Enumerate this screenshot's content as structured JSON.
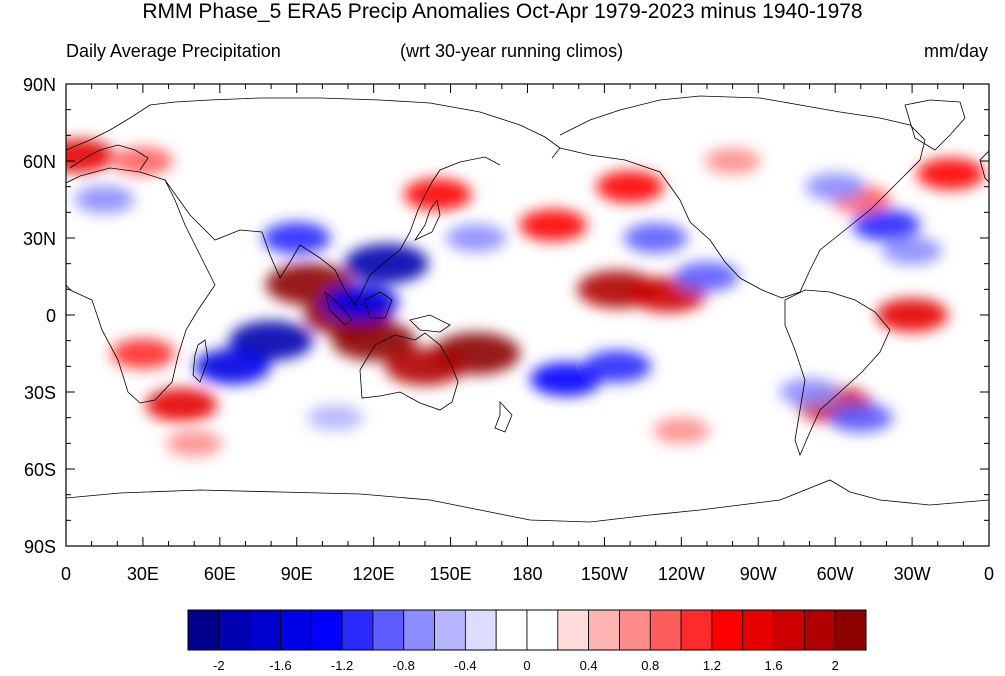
{
  "title": "RMM Phase_5 ERA5 Precip Anomalies Oct-Apr 1979-2023 minus 1940-1978",
  "subtitle_left": "Daily Average Precipitation",
  "subtitle_center": "(wrt 30-year running climos)",
  "subtitle_right": "mm/day",
  "map": {
    "projection": "cylindrical-equidistant",
    "lon_range": [
      0,
      360
    ],
    "lat_range": [
      -90,
      90
    ],
    "lon_ticks": [
      {
        "value": 0,
        "label": "0"
      },
      {
        "value": 30,
        "label": "30E"
      },
      {
        "value": 60,
        "label": "60E"
      },
      {
        "value": 90,
        "label": "90E"
      },
      {
        "value": 120,
        "label": "120E"
      },
      {
        "value": 150,
        "label": "150E"
      },
      {
        "value": 180,
        "label": "180"
      },
      {
        "value": 210,
        "label": "150W"
      },
      {
        "value": 240,
        "label": "120W"
      },
      {
        "value": 270,
        "label": "90W"
      },
      {
        "value": 300,
        "label": "60W"
      },
      {
        "value": 330,
        "label": "30W"
      },
      {
        "value": 360,
        "label": "0"
      }
    ],
    "lat_ticks": [
      {
        "value": 90,
        "label": "90N"
      },
      {
        "value": 60,
        "label": "60N"
      },
      {
        "value": 30,
        "label": "30N"
      },
      {
        "value": 0,
        "label": "0"
      },
      {
        "value": -30,
        "label": "30S"
      },
      {
        "value": -60,
        "label": "60S"
      },
      {
        "value": -90,
        "label": "90S"
      }
    ]
  },
  "colorbar": {
    "colors": [
      "#00008c",
      "#0000b0",
      "#0000cc",
      "#0000e6",
      "#0000ff",
      "#2a2aff",
      "#5c5cff",
      "#8c8cff",
      "#b4b4ff",
      "#dcdcff",
      "#ffffff",
      "#ffffff",
      "#ffdcdc",
      "#ffb4b4",
      "#ff8c8c",
      "#ff5c5c",
      "#ff2a2a",
      "#ff0000",
      "#e60000",
      "#cc0000",
      "#b00000",
      "#8c0000"
    ],
    "labels": [
      {
        "index": 1,
        "label": "-2"
      },
      {
        "index": 3,
        "label": "-1.6"
      },
      {
        "index": 5,
        "label": "-1.2"
      },
      {
        "index": 7,
        "label": "-0.8"
      },
      {
        "index": 9,
        "label": "-0.4"
      },
      {
        "index": 11,
        "label": "0"
      },
      {
        "index": 13,
        "label": "0.4"
      },
      {
        "index": 15,
        "label": "0.8"
      },
      {
        "index": 17,
        "label": "1.2"
      },
      {
        "index": 19,
        "label": "1.6"
      },
      {
        "index": 21,
        "label": "2"
      }
    ]
  },
  "anomaly_regions": [
    {
      "lon": 110,
      "lat": 0,
      "value": 2.2
    },
    {
      "lon": 95,
      "lat": 12,
      "value": 2.2
    },
    {
      "lon": 120,
      "lat": -10,
      "value": 2.0
    },
    {
      "lon": 160,
      "lat": -15,
      "value": 2.2
    },
    {
      "lon": 140,
      "lat": -20,
      "value": 1.8
    },
    {
      "lon": 215,
      "lat": 10,
      "value": 1.8
    },
    {
      "lon": 235,
      "lat": 8,
      "value": 1.6
    },
    {
      "lon": 330,
      "lat": 0,
      "value": 1.4
    },
    {
      "lon": 300,
      "lat": -35,
      "value": 1.6
    },
    {
      "lon": 45,
      "lat": -35,
      "value": 1.4
    },
    {
      "lon": 190,
      "lat": 35,
      "value": 1.2
    },
    {
      "lon": 145,
      "lat": 47,
      "value": 1.2
    },
    {
      "lon": 30,
      "lat": 60,
      "value": 0.8
    },
    {
      "lon": 220,
      "lat": 50,
      "value": 1.2
    },
    {
      "lon": 310,
      "lat": 45,
      "value": 0.8
    },
    {
      "lon": 345,
      "lat": 55,
      "value": 1.2
    },
    {
      "lon": 5,
      "lat": 62,
      "value": 1.4
    },
    {
      "lon": 30,
      "lat": -15,
      "value": 1.0
    },
    {
      "lon": 80,
      "lat": -10,
      "value": -2.0
    },
    {
      "lon": 65,
      "lat": -20,
      "value": -1.6
    },
    {
      "lon": 125,
      "lat": 20,
      "value": -2.0
    },
    {
      "lon": 90,
      "lat": 30,
      "value": -1.2
    },
    {
      "lon": 115,
      "lat": 5,
      "value": -1.6
    },
    {
      "lon": 195,
      "lat": -25,
      "value": -1.4
    },
    {
      "lon": 215,
      "lat": -20,
      "value": -1.2
    },
    {
      "lon": 230,
      "lat": 30,
      "value": -1.0
    },
    {
      "lon": 250,
      "lat": 15,
      "value": -1.0
    },
    {
      "lon": 160,
      "lat": 30,
      "value": -0.8
    },
    {
      "lon": 320,
      "lat": 35,
      "value": -1.2
    },
    {
      "lon": 300,
      "lat": 50,
      "value": -0.8
    },
    {
      "lon": 330,
      "lat": 25,
      "value": -0.8
    },
    {
      "lon": 15,
      "lat": 45,
      "value": -0.8
    },
    {
      "lon": 105,
      "lat": -40,
      "value": -0.6
    },
    {
      "lon": 290,
      "lat": -30,
      "value": -0.8
    },
    {
      "lon": 310,
      "lat": -40,
      "value": -1.0
    },
    {
      "lon": 240,
      "lat": -45,
      "value": 0.6
    },
    {
      "lon": 50,
      "lat": -50,
      "value": 0.6
    },
    {
      "lon": 260,
      "lat": 60,
      "value": 0.6
    }
  ]
}
